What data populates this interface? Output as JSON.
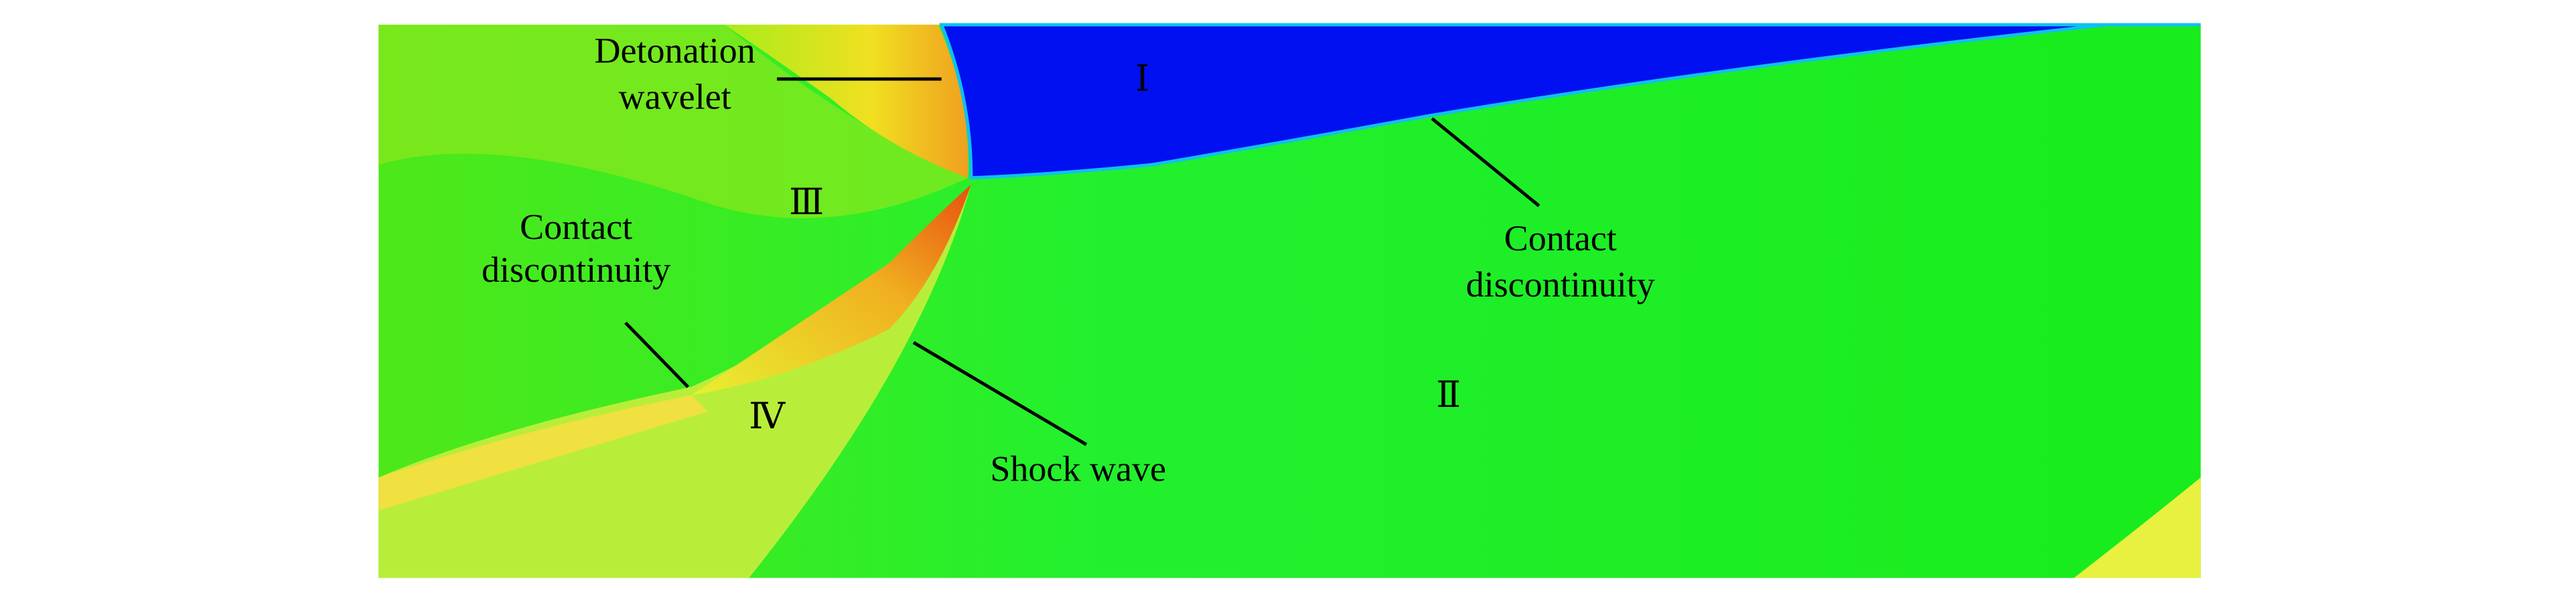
{
  "figure": {
    "regions": [
      "Ⅰ",
      "Ⅱ",
      "Ⅲ",
      "Ⅳ"
    ],
    "labels": {
      "detonation_wavelet": [
        "Detonation",
        "wavelet"
      ],
      "contact_discontinuity_left": [
        "Contact",
        "discontinuity"
      ],
      "contact_discontinuity_right": [
        "Contact",
        "discontinuity"
      ],
      "shock_wave": "Shock wave"
    }
  }
}
